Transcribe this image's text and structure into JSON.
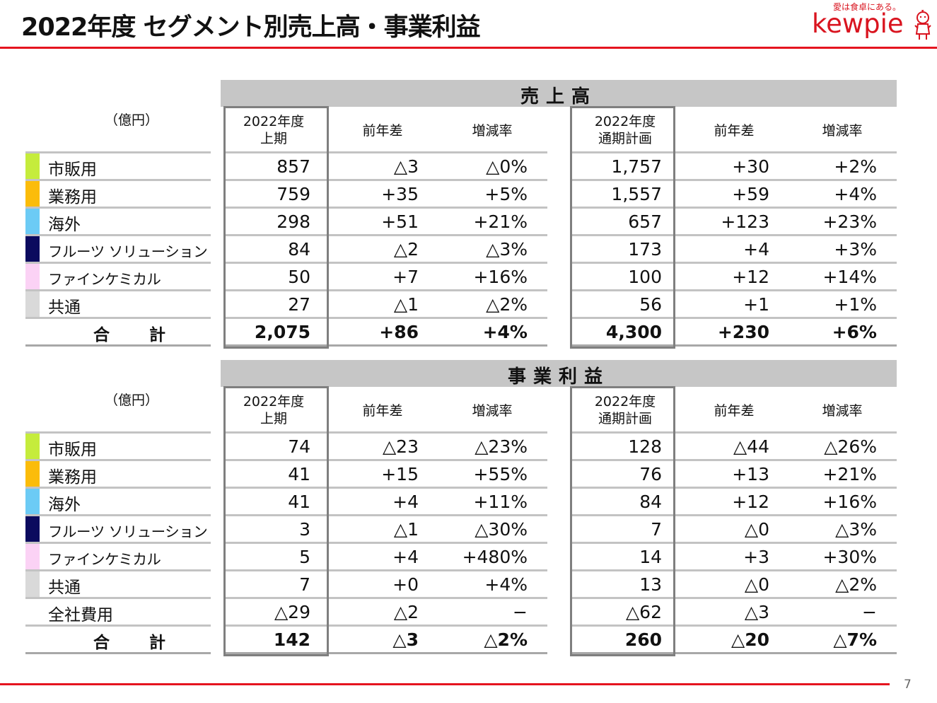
{
  "page": {
    "title": "2022年度 セグメント別売上高・事業利益",
    "page_number": "7",
    "logo": {
      "tagline": "愛は食卓にある。",
      "wordmark": "kewpie"
    },
    "colors": {
      "accent_red": "#e5141f"
    }
  },
  "sales": {
    "section_title": "売上高",
    "unit": "（億円）",
    "headers": {
      "h1_line1": "2022年度",
      "h1_line2": "上期",
      "h2": "前年差",
      "h3": "増減率",
      "h4_line1": "2022年度",
      "h4_line2": "通期計画",
      "h5": "前年差",
      "h6": "増減率"
    },
    "rows": [
      {
        "label": "市販用",
        "color": "#c5ec3c",
        "cells": [
          "857",
          "△3",
          "△0%",
          "1,757",
          "+30",
          "+2%"
        ]
      },
      {
        "label": "業務用",
        "color": "#fbbc0a",
        "cells": [
          "759",
          "+35",
          "+5%",
          "1,557",
          "+59",
          "+4%"
        ]
      },
      {
        "label": "海外",
        "color": "#6ccbf5",
        "cells": [
          "298",
          "+51",
          "+21%",
          "657",
          "+123",
          "+23%"
        ]
      },
      {
        "label": "フルーツ ソリューション",
        "color": "#0b0a5e",
        "cells": [
          "84",
          "△2",
          "△3%",
          "173",
          "+4",
          "+3%"
        ]
      },
      {
        "label": "ファインケミカル",
        "color": "#fbd2f5",
        "cells": [
          "50",
          "+7",
          "+16%",
          "100",
          "+12",
          "+14%"
        ]
      },
      {
        "label": "共通",
        "color": "#d9d9d9",
        "cells": [
          "27",
          "△1",
          "△2%",
          "56",
          "+1",
          "+1%"
        ]
      }
    ],
    "total": {
      "label": "合計",
      "cells": [
        "2,075",
        "+86",
        "+4%",
        "4,300",
        "+230",
        "+6%"
      ]
    }
  },
  "profit": {
    "section_title": "事業利益",
    "unit": "（億円）",
    "headers": {
      "h1_line1": "2022年度",
      "h1_line2": "上期",
      "h2": "前年差",
      "h3": "増減率",
      "h4_line1": "2022年度",
      "h4_line2": "通期計画",
      "h5": "前年差",
      "h6": "増減率"
    },
    "rows": [
      {
        "label": "市販用",
        "color": "#c5ec3c",
        "cells": [
          "74",
          "△23",
          "△23%",
          "128",
          "△44",
          "△26%"
        ]
      },
      {
        "label": "業務用",
        "color": "#fbbc0a",
        "cells": [
          "41",
          "+15",
          "+55%",
          "76",
          "+13",
          "+21%"
        ]
      },
      {
        "label": "海外",
        "color": "#6ccbf5",
        "cells": [
          "41",
          "+4",
          "+11%",
          "84",
          "+12",
          "+16%"
        ]
      },
      {
        "label": "フルーツ ソリューション",
        "color": "#0b0a5e",
        "cells": [
          "3",
          "△1",
          "△30%",
          "7",
          "△0",
          "△3%"
        ]
      },
      {
        "label": "ファインケミカル",
        "color": "#fbd2f5",
        "cells": [
          "5",
          "+4",
          "+480%",
          "14",
          "+3",
          "+30%"
        ]
      },
      {
        "label": "共通",
        "color": "#d9d9d9",
        "cells": [
          "7",
          "+0",
          "+4%",
          "13",
          "△0",
          "△2%"
        ]
      },
      {
        "label": "全社費用",
        "color": "",
        "cells": [
          "△29",
          "△2",
          "−",
          "△62",
          "△3",
          "−"
        ]
      }
    ],
    "total": {
      "label": "合計",
      "cells": [
        "142",
        "△3",
        "△2%",
        "260",
        "△20",
        "△7%"
      ]
    }
  }
}
